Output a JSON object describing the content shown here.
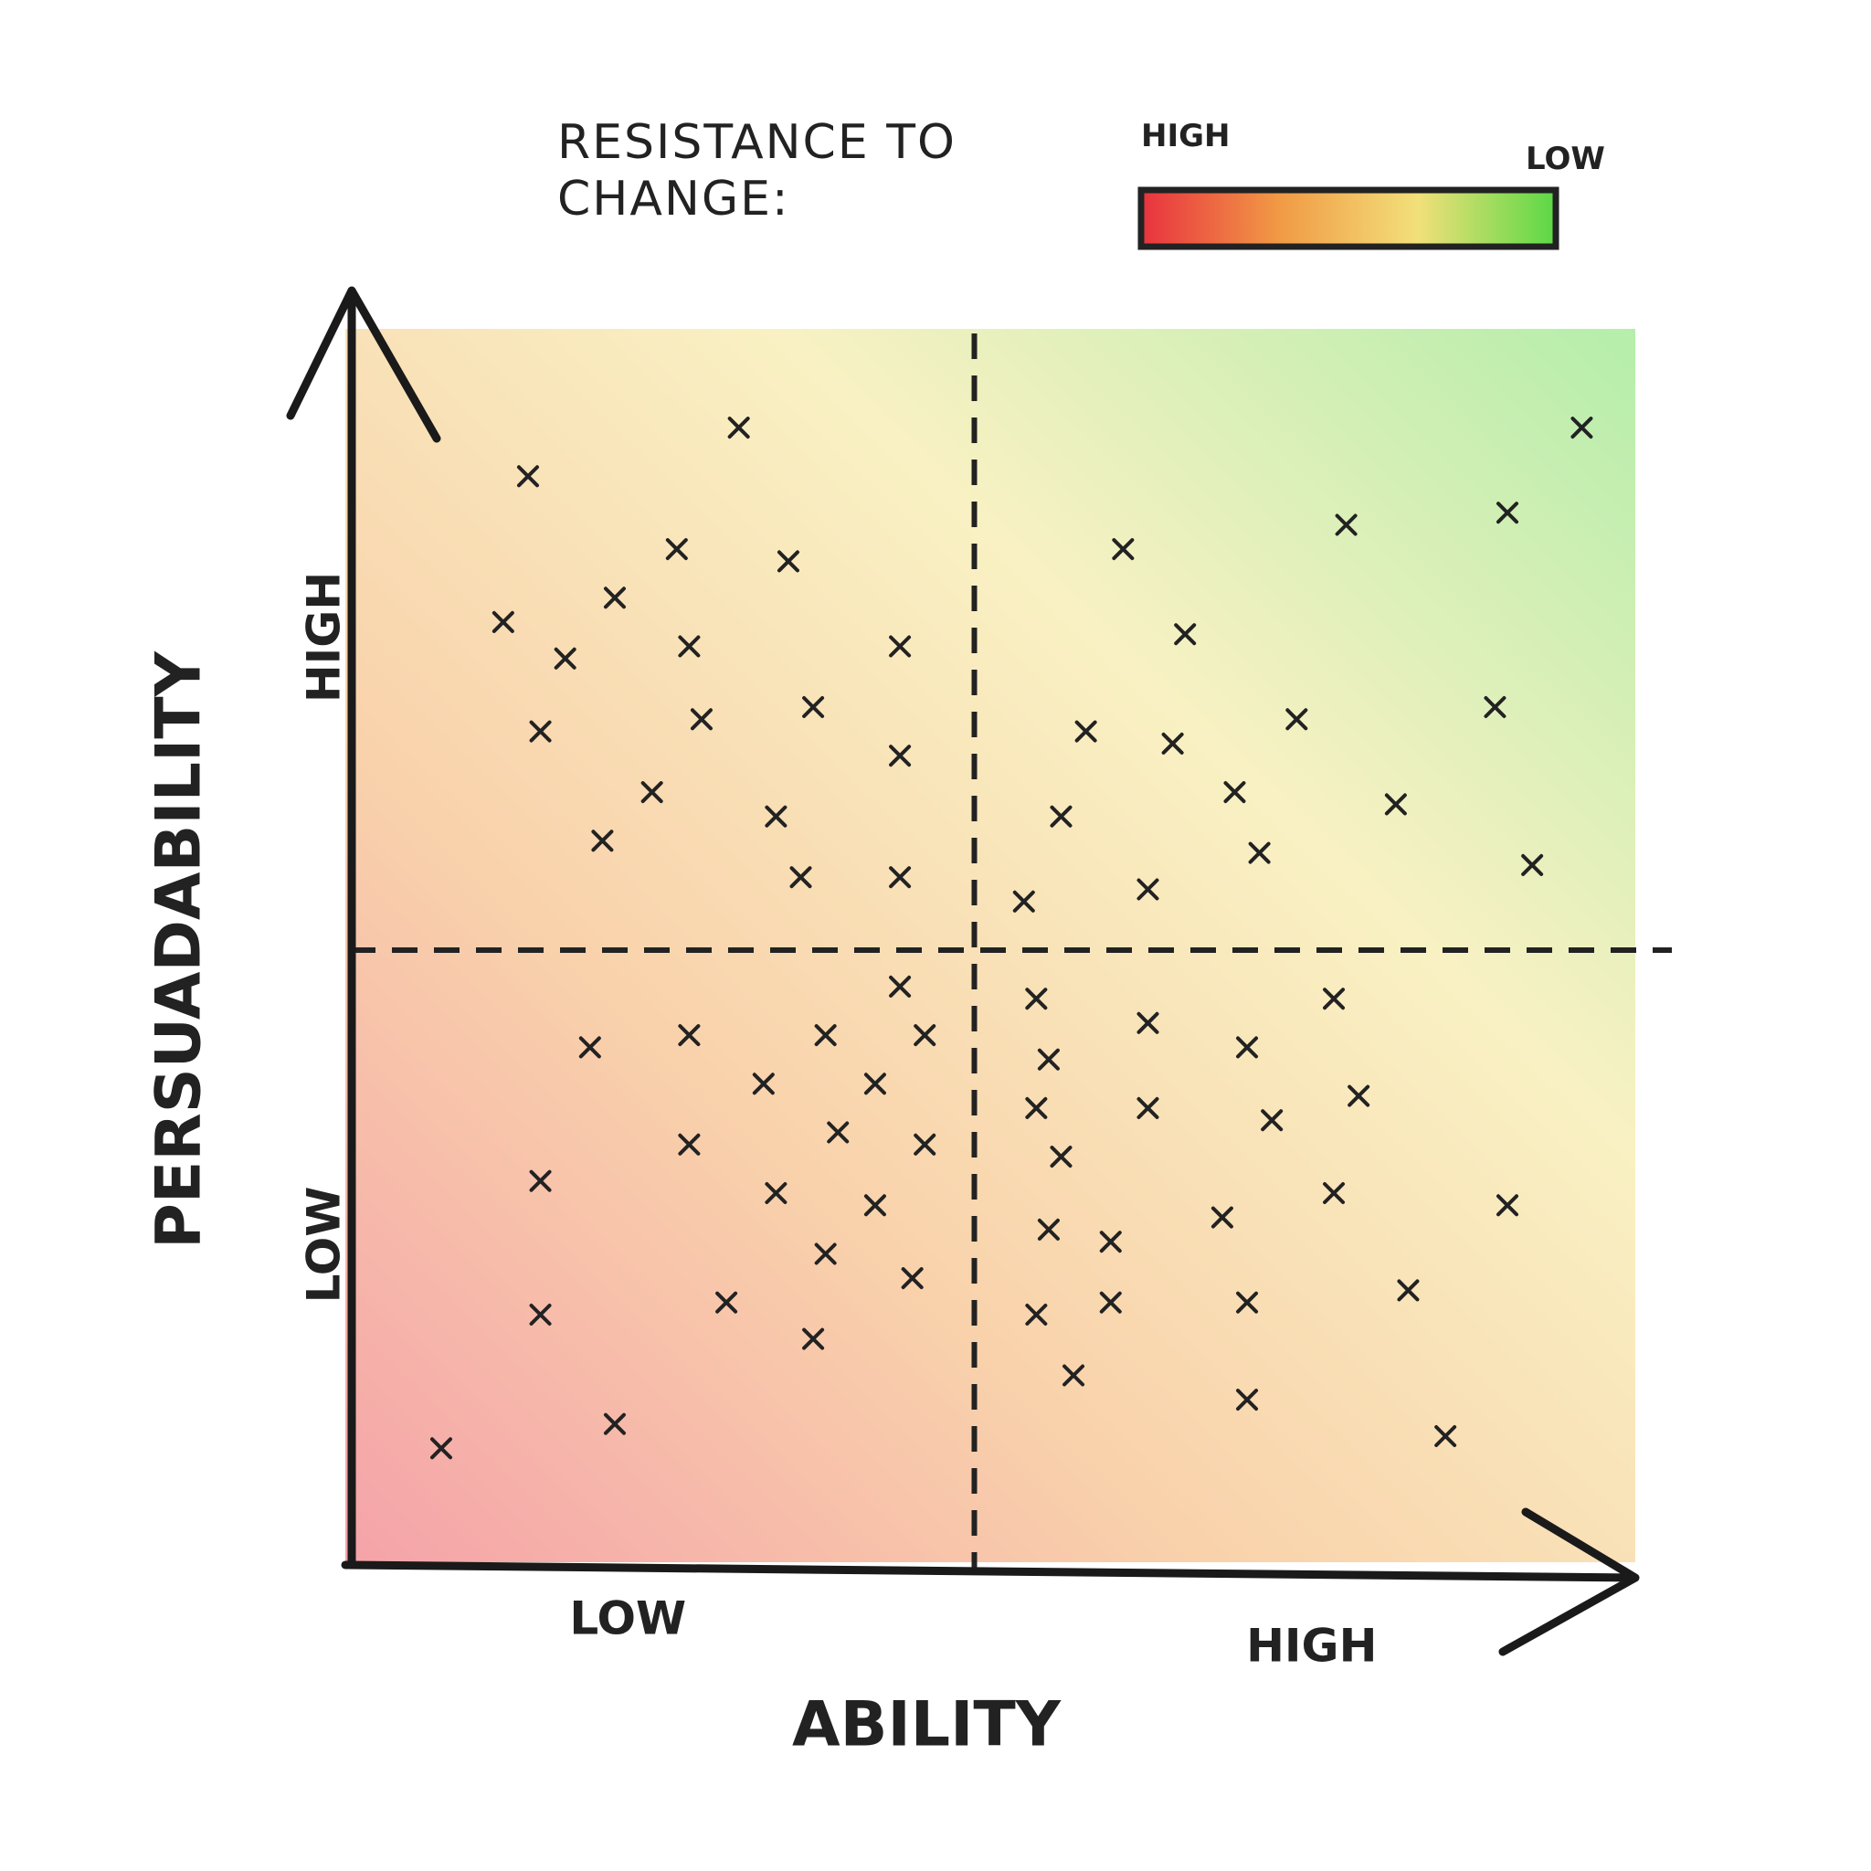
{
  "chart_data": {
    "type": "scatter",
    "x_label": "ABILITY",
    "y_label": "PERSUADABILITY",
    "xlim": [
      0,
      100
    ],
    "ylim": [
      0,
      100
    ],
    "xticks": [
      {
        "value": 25,
        "label": "LOW"
      },
      {
        "value": 75,
        "label": "HIGH"
      }
    ],
    "yticks": [
      {
        "value": 25,
        "label": "LOW"
      },
      {
        "value": 75,
        "label": "HIGH"
      }
    ],
    "quadrant_split": {
      "x": 50,
      "y": 50
    },
    "marker": "x",
    "series": [
      {
        "color": "#222222",
        "x": [
          31,
          14,
          26,
          35,
          21,
          12,
          17,
          27,
          44,
          15,
          28,
          37,
          44,
          24,
          34,
          20,
          36,
          44,
          99,
          93,
          80,
          62,
          67,
          59,
          66,
          76,
          92,
          57,
          71,
          84,
          73,
          64,
          54,
          95,
          44,
          27,
          38,
          19,
          46,
          33,
          42,
          15,
          27,
          39,
          46,
          34,
          42,
          38,
          45,
          30,
          15,
          37,
          21,
          7,
          55,
          79,
          64,
          56,
          72,
          81,
          55,
          64,
          74,
          57,
          79,
          93,
          70,
          56,
          61,
          85,
          55,
          61,
          72,
          58,
          72,
          88
        ],
        "values": [
          93,
          89,
          83,
          82,
          79,
          77,
          74,
          75,
          75,
          68,
          69,
          70,
          66,
          63,
          61,
          59,
          56,
          56,
          93,
          86,
          85,
          83,
          76,
          68,
          67,
          69,
          70,
          61,
          63,
          62,
          58,
          55,
          54,
          57,
          47,
          43,
          43,
          42,
          43,
          39,
          39,
          31,
          34,
          35,
          34,
          30,
          29,
          25,
          23,
          21,
          20,
          18,
          11,
          9,
          46,
          46,
          44,
          41,
          42,
          38,
          37,
          37,
          36,
          33,
          30,
          29,
          28,
          27,
          26,
          22,
          20,
          21,
          21,
          15,
          13,
          10
        ]
      }
    ],
    "colorbar": {
      "title": "RESISTANCE TO CHANGE:",
      "high_label": "HIGH",
      "low_label": "LOW",
      "colors": [
        "#e8323f",
        "#f19a45",
        "#f2e07a",
        "#5ad845"
      ]
    }
  }
}
